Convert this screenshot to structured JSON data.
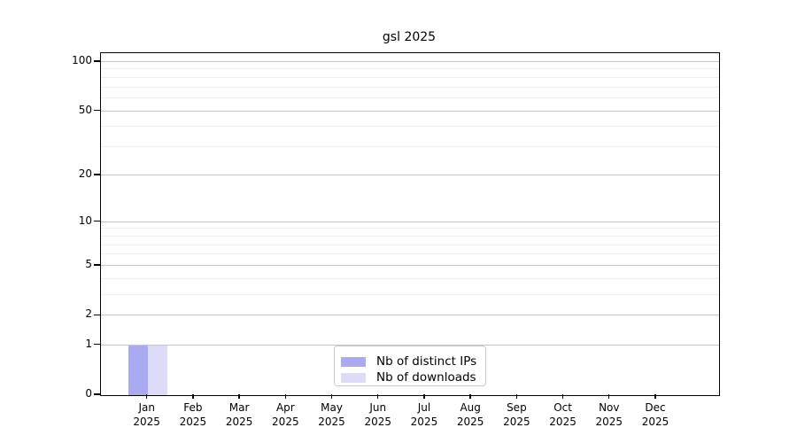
{
  "chart_data": {
    "type": "bar",
    "title": "gsl 2025",
    "categories": [
      "Jan",
      "Feb",
      "Mar",
      "Apr",
      "May",
      "Jun",
      "Jul",
      "Aug",
      "Sep",
      "Oct",
      "Nov",
      "Dec"
    ],
    "x_axis": {
      "year": "2025",
      "tick_label_format": "month newline year",
      "first_tick_frac": 0.0755,
      "tick_spacing_frac": 0.0748
    },
    "y_axis": {
      "scale": "log1p",
      "ticks": [
        0,
        1,
        2,
        5,
        10,
        20,
        50,
        100
      ],
      "minor_gridlines": [
        3,
        4,
        6,
        7,
        8,
        9,
        30,
        40,
        60,
        70,
        80,
        90
      ],
      "ylim": [
        0,
        113
      ],
      "grid": true
    },
    "series": [
      {
        "name": "Nb of distinct IPs",
        "color": "#aaaaf2",
        "values": [
          1,
          0,
          0,
          0,
          0,
          0,
          0,
          0,
          0,
          0,
          0,
          0
        ]
      },
      {
        "name": "Nb of downloads",
        "color": "#dcdcf8",
        "values": [
          1,
          0,
          0,
          0,
          0,
          0,
          0,
          0,
          0,
          0,
          0,
          0
        ]
      }
    ],
    "legend": {
      "position": "bottom-center"
    }
  }
}
